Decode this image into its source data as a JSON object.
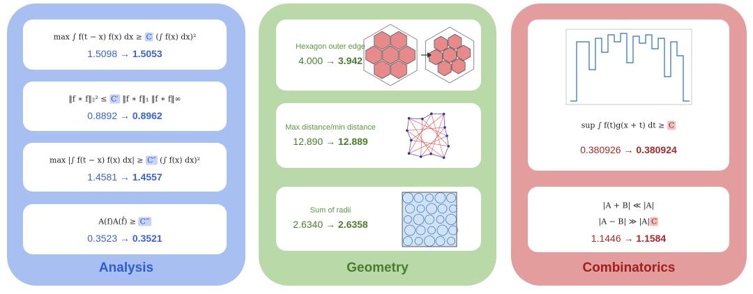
{
  "arrow": "→",
  "panels": [
    {
      "title": "Analysis",
      "cards": [
        {
          "lines": [
            {
              "pre": "max ∫ f(t − x) f(x) dx ≥ ",
              "const": "C",
              "post": " (∫ f(x) dx)²"
            }
          ],
          "from": "1.5098",
          "to": "1.5053"
        },
        {
          "lines": [
            {
              "pre": "‖f ∗ f‖₂² ≤ ",
              "const": "C′",
              "post": " ‖f ∗ f‖₁ ‖f ∗ f‖∞"
            }
          ],
          "from": "0.8892",
          "to": "0.8962"
        },
        {
          "lines": [
            {
              "pre": "max |∫ f(t − x) f(x) dx| ≥ ",
              "const": "C″",
              "post": " (∫ f(x) dx)²"
            }
          ],
          "from": "1.4581",
          "to": "1.4557"
        },
        {
          "lines": [
            {
              "pre": "A(f)A(f̂) ≥ ",
              "const": "C‴"
            }
          ],
          "from": "0.3523",
          "to": "0.3521"
        }
      ]
    },
    {
      "title": "Geometry",
      "cards": [
        {
          "label": "Hexagon outer edge",
          "from": "4.000",
          "to": "3.942"
        },
        {
          "label": "Max distance/min distance",
          "from": "12.890",
          "to": "12.889"
        },
        {
          "label": "Sum of radii",
          "from": "2.6340",
          "to": "2.6358"
        }
      ]
    },
    {
      "title": "Combinatorics",
      "cards": [
        {
          "lines": [
            {
              "pre": "sup ∫ f(t)g(x + t) dt ≥ ",
              "const": "C"
            }
          ],
          "from": "0.380926",
          "to": "0.380924"
        },
        {
          "lines": [
            {
              "pre": "|A + B| ≪ |A|"
            },
            {
              "pre": "|A − B| ≫ |A|",
              "const": "C"
            }
          ],
          "from": "1.1446",
          "to": "1.1584"
        }
      ]
    }
  ]
}
